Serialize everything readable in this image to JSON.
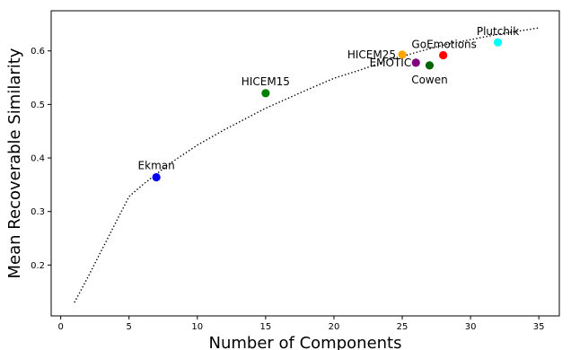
{
  "chart_data": {
    "type": "scatter",
    "xlabel": "Number of Components",
    "ylabel": "Mean Recoverable Similarity",
    "xlim": [
      -0.7,
      36.5
    ],
    "ylim": [
      0.105,
      0.675
    ],
    "xticks": [
      0,
      5,
      10,
      15,
      20,
      25,
      30,
      35
    ],
    "yticks": [
      0.2,
      0.3,
      0.4,
      0.5,
      0.6
    ],
    "grid": false,
    "legend": "none",
    "points": [
      {
        "label": "Ekman",
        "x": 7,
        "y": 0.364,
        "color": "#0000ff"
      },
      {
        "label": "HICEM15",
        "x": 15,
        "y": 0.521,
        "color": "#008000"
      },
      {
        "label": "HICEM25",
        "x": 25,
        "y": 0.593,
        "color": "#ffa500"
      },
      {
        "label": "EMOTIC",
        "x": 26,
        "y": 0.578,
        "color": "#800080"
      },
      {
        "label": "Cowen",
        "x": 27,
        "y": 0.573,
        "color": "#006400"
      },
      {
        "label": "GoEmotions",
        "x": 28,
        "y": 0.592,
        "color": "#ff0000"
      },
      {
        "label": "Plutchik",
        "x": 32,
        "y": 0.616,
        "color": "#00ffff"
      }
    ],
    "curve": {
      "style": "dotted",
      "color": "#000000",
      "x": [
        1,
        2,
        3,
        4,
        5,
        6,
        7,
        8,
        10,
        12,
        15,
        18,
        20,
        22,
        24,
        26,
        28,
        30,
        32,
        35
      ],
      "y": [
        0.13,
        0.178,
        0.228,
        0.278,
        0.328,
        0.35,
        0.37,
        0.39,
        0.424,
        0.453,
        0.493,
        0.527,
        0.549,
        0.565,
        0.583,
        0.597,
        0.611,
        0.621,
        0.631,
        0.643
      ]
    }
  }
}
